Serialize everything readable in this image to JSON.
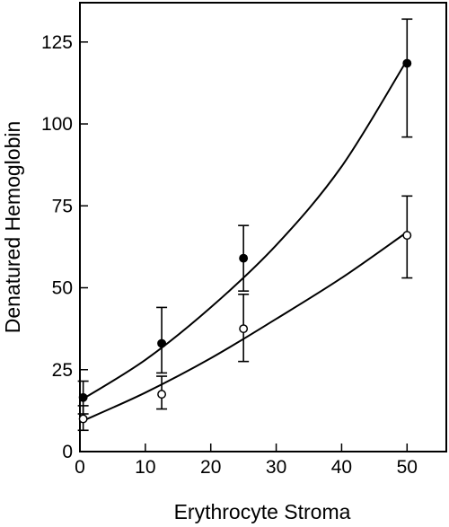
{
  "chart_data": {
    "type": "scatter",
    "title": "",
    "xlabel": "Erythrocyte Stroma",
    "ylabel": "Denatured Hemoglobin",
    "xlim": [
      0,
      56
    ],
    "ylim": [
      0,
      137
    ],
    "x_ticks": [
      0,
      10,
      20,
      30,
      40,
      50
    ],
    "y_ticks": [
      0,
      25,
      50,
      75,
      100,
      125
    ],
    "grid": false,
    "legend": "none",
    "series": [
      {
        "marker": "filled-circle",
        "color": "#000000",
        "points": [
          {
            "x": 0.5,
            "y": 16.5,
            "err_low": 11.5,
            "err_high": 21.5
          },
          {
            "x": 12.5,
            "y": 33,
            "err_low": 24,
            "err_high": 44
          },
          {
            "x": 25,
            "y": 59,
            "err_low": 49,
            "err_high": 69
          },
          {
            "x": 50,
            "y": 118.5,
            "err_low": 96,
            "err_high": 132
          }
        ],
        "fit": [
          [
            0,
            15.5
          ],
          [
            10,
            28
          ],
          [
            20,
            44
          ],
          [
            30,
            63
          ],
          [
            40,
            87
          ],
          [
            50,
            119.5
          ]
        ]
      },
      {
        "marker": "open-circle",
        "color": "#000000",
        "points": [
          {
            "x": 0.5,
            "y": 10,
            "err_low": 6.5,
            "err_high": 14
          },
          {
            "x": 12.5,
            "y": 17.5,
            "err_low": 13,
            "err_high": 23
          },
          {
            "x": 25,
            "y": 37.5,
            "err_low": 27.5,
            "err_high": 48
          },
          {
            "x": 50,
            "y": 66,
            "err_low": 53,
            "err_high": 78
          }
        ],
        "fit": [
          [
            0,
            9
          ],
          [
            10,
            18
          ],
          [
            20,
            28.5
          ],
          [
            30,
            40.5
          ],
          [
            40,
            53
          ],
          [
            50,
            67
          ]
        ]
      }
    ]
  }
}
